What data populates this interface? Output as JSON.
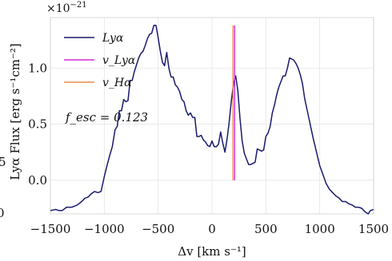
{
  "chart_data": {
    "type": "line",
    "title": "",
    "xlabel": "Δv [km s⁻¹]",
    "ylabel": "Lyα Flux [erg s⁻¹cm⁻²]",
    "y_scale_label": "×10⁻²¹",
    "xlim": [
      -1500,
      1500
    ],
    "ylim": [
      -0.3,
      1.45
    ],
    "xticks": [
      -1500,
      -1000,
      -500,
      0,
      500,
      1000,
      1500
    ],
    "xtick_labels": [
      "−1500",
      "−1000",
      "−500",
      "0",
      "500",
      "1000",
      "1500"
    ],
    "yticks": [
      0.0,
      0.5,
      1.0
    ],
    "ytick_labels": [
      "0.0",
      "0.5",
      "1.0"
    ],
    "grid": true,
    "legend_position": "top-left",
    "colors": {
      "lya": "#1a1a6e",
      "v_lya": "#d42ad4",
      "v_ha": "#ef8c4a"
    },
    "series": [
      {
        "name": "Lyα",
        "x": [
          -1500,
          -1450,
          -1420,
          -1390,
          -1350,
          -1300,
          -1250,
          -1210,
          -1180,
          -1150,
          -1120,
          -1090,
          -1060,
          -1030,
          -1000,
          -975,
          -950,
          -925,
          -900,
          -880,
          -860,
          -840,
          -820,
          -800,
          -780,
          -760,
          -740,
          -720,
          -700,
          -680,
          -660,
          -640,
          -620,
          -600,
          -580,
          -560,
          -540,
          -520,
          -500,
          -480,
          -460,
          -440,
          -420,
          -400,
          -380,
          -360,
          -340,
          -320,
          -300,
          -280,
          -260,
          -240,
          -220,
          -200,
          -180,
          -160,
          -140,
          -120,
          -100,
          -80,
          -60,
          -40,
          -20,
          0,
          20,
          40,
          60,
          80,
          100,
          120,
          140,
          160,
          180,
          200,
          220,
          240,
          260,
          280,
          300,
          320,
          340,
          360,
          380,
          400,
          420,
          440,
          460,
          480,
          500,
          520,
          540,
          560,
          580,
          600,
          620,
          640,
          660,
          680,
          700,
          720,
          740,
          760,
          780,
          800,
          820,
          840,
          860,
          880,
          900,
          920,
          940,
          960,
          980,
          1000,
          1030,
          1060,
          1090,
          1120,
          1150,
          1180,
          1210,
          1240,
          1270,
          1300,
          1330,
          1360,
          1390,
          1420,
          1450,
          1470,
          1500
        ],
        "y": [
          -0.27,
          -0.26,
          -0.27,
          -0.27,
          -0.24,
          -0.24,
          -0.22,
          -0.19,
          -0.16,
          -0.15,
          -0.12,
          -0.1,
          -0.11,
          -0.1,
          0.03,
          0.13,
          0.22,
          0.3,
          0.45,
          0.48,
          0.62,
          0.62,
          0.72,
          0.7,
          0.71,
          0.89,
          0.89,
          0.97,
          1.03,
          1.09,
          1.13,
          1.15,
          1.2,
          1.26,
          1.3,
          1.31,
          1.38,
          1.38,
          1.27,
          1.15,
          1.05,
          1.02,
          1.14,
          1.0,
          0.92,
          0.92,
          0.85,
          0.83,
          0.79,
          0.72,
          0.7,
          0.62,
          0.58,
          0.6,
          0.56,
          0.56,
          0.39,
          0.39,
          0.4,
          0.36,
          0.34,
          0.31,
          0.3,
          0.35,
          0.3,
          0.3,
          0.32,
          0.43,
          0.33,
          0.25,
          0.37,
          0.52,
          0.71,
          0.86,
          0.93,
          0.8,
          0.55,
          0.35,
          0.24,
          0.19,
          0.14,
          0.14,
          0.15,
          0.16,
          0.28,
          0.27,
          0.26,
          0.27,
          0.39,
          0.42,
          0.48,
          0.6,
          0.67,
          0.76,
          0.83,
          0.88,
          0.93,
          0.93,
          1.0,
          1.09,
          1.08,
          1.07,
          1.04,
          1.0,
          0.94,
          0.86,
          0.73,
          0.64,
          0.55,
          0.46,
          0.37,
          0.29,
          0.21,
          0.13,
          0.05,
          -0.03,
          -0.08,
          -0.11,
          -0.14,
          -0.16,
          -0.19,
          -0.19,
          -0.21,
          -0.22,
          -0.24,
          -0.24,
          -0.25,
          -0.28,
          -0.3,
          -0.27,
          -0.26
        ]
      },
      {
        "name": "v_Lyα",
        "type": "vline",
        "x": 210
      },
      {
        "name": "v_Hα",
        "type": "vline",
        "x": 195
      }
    ],
    "legend": [
      {
        "key": "lya",
        "label": "Lyα"
      },
      {
        "key": "v_lya",
        "label": "v_Lyα"
      },
      {
        "key": "v_ha",
        "label": "v_Hα"
      }
    ],
    "annotation": "f_esc = 0.123",
    "left_edge_fragments": [
      "5",
      "0"
    ]
  }
}
